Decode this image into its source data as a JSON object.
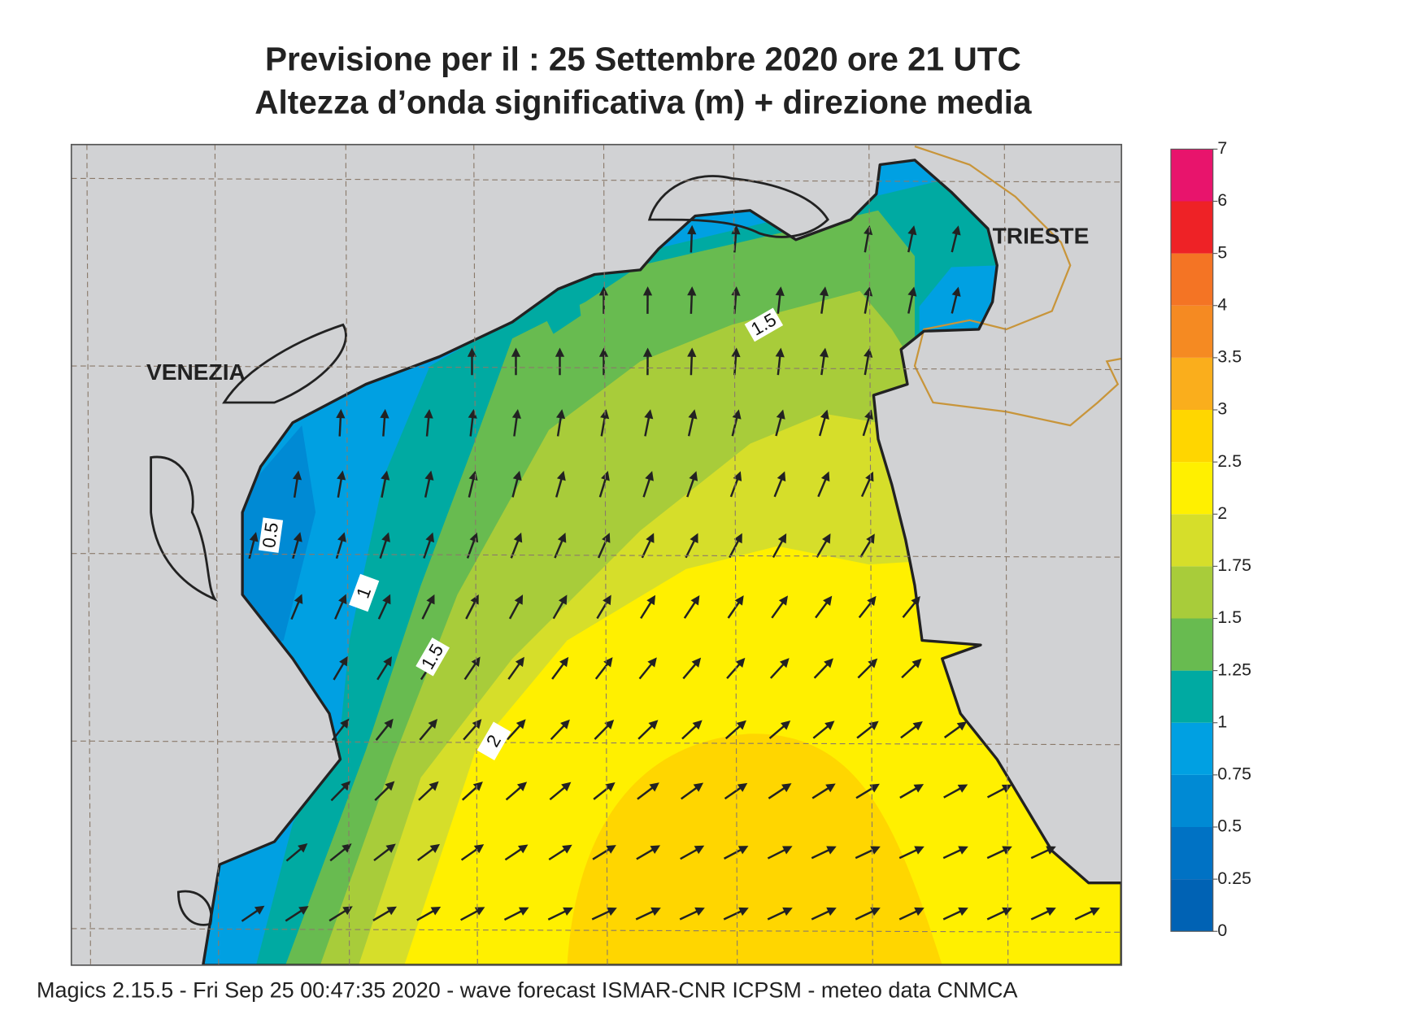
{
  "title": {
    "line1": "Previsione per il  :  25 Settembre 2020   ore 21 UTC",
    "line2": "Altezza d’onda significativa (m) + direzione media"
  },
  "places": [
    "VENEZIA",
    "TRIESTE"
  ],
  "contour_labels": [
    "0.5",
    "1",
    "1.5",
    "2",
    "1.5"
  ],
  "colorbar": {
    "levels": [
      0,
      0.25,
      0.5,
      0.75,
      1,
      1.25,
      1.5,
      1.75,
      2,
      2.5,
      3,
      3.5,
      4,
      5,
      6,
      7
    ],
    "colors": [
      "#0062b4",
      "#0072c4",
      "#008ad4",
      "#00a0e2",
      "#00aaa2",
      "#68bb50",
      "#a8cc3a",
      "#d6de2a",
      "#fff000",
      "#ffd600",
      "#faae1c",
      "#f58a22",
      "#f47424",
      "#ee2226",
      "#e8146c"
    ]
  },
  "footer": "Magics 2.15.5 - Fri Sep 25 00:47:35 2020 - wave forecast  ISMAR-CNR  ICPSM - meteo data   CNMCA"
}
